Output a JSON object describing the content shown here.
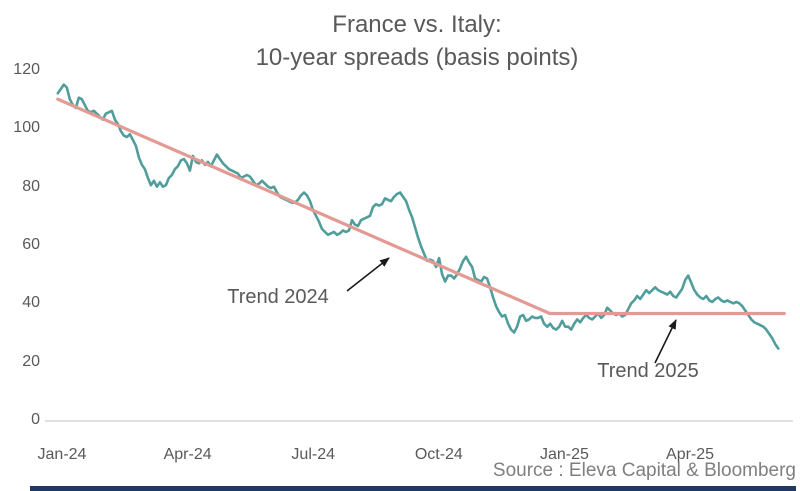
{
  "title": {
    "line1": "France vs. Italy:",
    "line2": "10-year spreads (basis points)"
  },
  "annotations": {
    "trend2024": "Trend 2024",
    "trend2025": "Trend 2025"
  },
  "source_note": "Source : Eleva Capital & Bloomberg",
  "colors": {
    "series": "#4f9e9b",
    "trend": "#e39a93",
    "title-text": "#595959",
    "axis-text": "#595959",
    "annotation-text": "#595959",
    "source-text": "#7f7f7f",
    "axis-line": "#d6d6d6",
    "arrow": "#1a1a1a",
    "bottom-bar": "#1f3864"
  },
  "chart_data": {
    "type": "line",
    "title": "France vs. Italy: 10-year spreads (basis points)",
    "ylabel": "basis points",
    "ylim": [
      0,
      120
    ],
    "y_ticks": [
      0,
      20,
      40,
      60,
      80,
      100,
      120
    ],
    "x_unit": "months since Jan-2024",
    "x_tick_labels": [
      "Jan-24",
      "Apr-24",
      "Jul-24",
      "Oct-24",
      "Jan-25",
      "Apr-25"
    ],
    "x_tick_positions": [
      0,
      3,
      6,
      9,
      12,
      15
    ],
    "grid": false,
    "legend": false,
    "series": [
      {
        "name": "France vs. Italy 10-year spread",
        "color_key": "series",
        "x_start": -0.1,
        "x_step": 0.0717,
        "values": [
          112,
          113.5,
          115,
          114,
          110,
          108,
          107,
          110.5,
          110,
          108,
          106,
          105.5,
          106,
          105,
          104,
          103,
          105,
          105.5,
          106,
          103,
          101.5,
          99,
          97.5,
          97,
          98,
          96,
          94,
          90,
          87.5,
          86,
          83,
          80.5,
          82,
          80,
          81.5,
          80,
          80.5,
          83,
          84,
          86,
          87,
          89,
          89.5,
          88,
          85.5,
          90.5,
          88.5,
          88,
          89,
          87.5,
          88.5,
          87,
          89,
          91,
          89.5,
          88,
          87,
          86,
          85.5,
          85,
          84.5,
          83,
          83.5,
          84,
          83.5,
          82,
          80.5,
          81,
          82,
          81,
          80,
          79.5,
          80,
          78,
          76.5,
          76,
          75.5,
          75,
          74.5,
          74.5,
          75.5,
          77,
          78,
          77,
          75,
          72,
          70,
          68,
          65.5,
          64.5,
          63.5,
          64,
          64.5,
          63.5,
          64,
          65,
          64.5,
          65,
          68.5,
          67,
          66.5,
          68.5,
          69,
          69.5,
          70,
          73,
          74,
          73.5,
          74,
          76,
          75.5,
          75,
          76.5,
          77.5,
          78,
          76.5,
          75,
          72,
          69.5,
          66,
          62.5,
          59.5,
          57,
          54.5,
          55,
          54.5,
          52.5,
          55.5,
          50,
          47.5,
          49.5,
          49.5,
          48.5,
          50,
          52,
          54.5,
          56,
          54,
          52.5,
          48.5,
          48,
          47.5,
          49,
          48.5,
          45.5,
          42,
          39,
          37,
          35.5,
          36,
          33,
          31,
          30,
          32,
          35.5,
          36,
          34,
          34.5,
          35.5,
          35,
          35,
          35.5,
          33,
          32,
          33,
          31.5,
          31,
          32,
          34,
          32,
          32,
          31,
          33,
          34.5,
          33.5,
          35,
          36,
          35,
          34.5,
          35.5,
          36.5,
          35,
          36,
          38.5,
          37.5,
          36.5,
          36,
          36.5,
          35.5,
          36,
          38,
          40,
          41,
          42.5,
          41.5,
          43,
          44.5,
          43.5,
          44.5,
          45.5,
          44.5,
          44,
          43.5,
          43,
          44,
          42.5,
          42,
          43.5,
          45,
          48,
          49.5,
          47,
          44.5,
          43,
          42,
          41.5,
          42.5,
          41,
          40.5,
          41.5,
          42,
          41,
          40.5,
          41,
          40.5,
          40,
          40.5,
          40,
          39,
          37.5,
          36,
          34.5,
          33.5,
          33,
          32.5,
          32,
          31,
          29.5,
          28,
          26,
          24.5
        ]
      },
      {
        "name": "Trend 2024",
        "color_key": "trend",
        "points": [
          [
            -0.1,
            110
          ],
          [
            11.65,
            36.5
          ]
        ]
      },
      {
        "name": "Trend 2025",
        "color_key": "trend",
        "points": [
          [
            11.65,
            36.5
          ],
          [
            17.25,
            36.5
          ]
        ]
      }
    ]
  }
}
